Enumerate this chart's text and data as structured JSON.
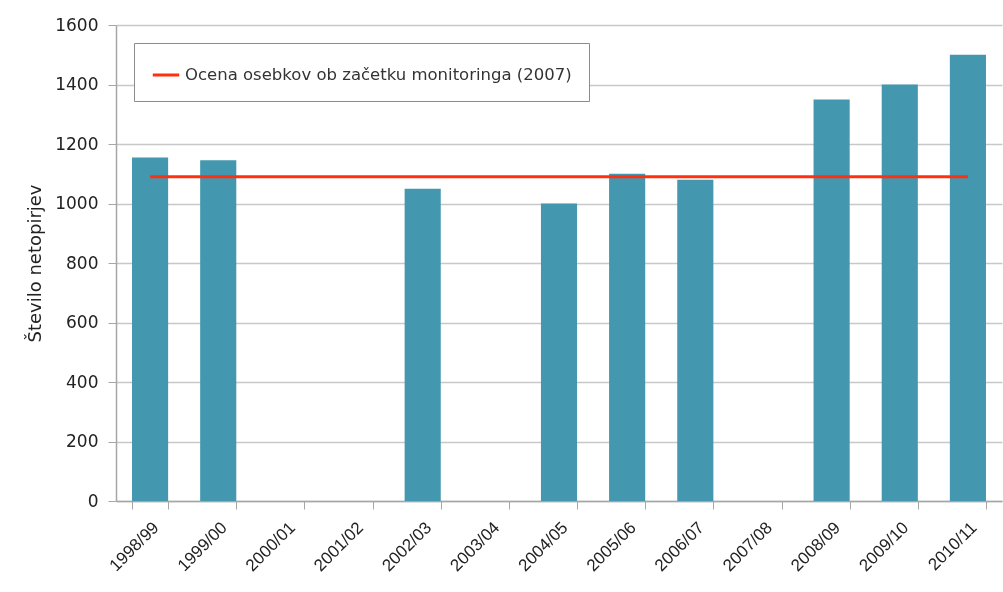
{
  "chart_data": {
    "type": "bar",
    "ylabel": "Število netopirjev",
    "categories": [
      "1998/99",
      "1999/00",
      "2000/01",
      "2001/02",
      "2002/03",
      "2003/04",
      "2004/05",
      "2005/06",
      "2006/07",
      "2007/08",
      "2008/09",
      "2009/10",
      "2010/11"
    ],
    "series": [
      {
        "color": "#4397ae",
        "values": [
          1155,
          1145,
          null,
          null,
          1050,
          null,
          1000,
          1100,
          1080,
          null,
          1350,
          1400,
          1500
        ]
      },
      {
        "type": "line",
        "name": "Ocena osebkov ob začetku monitoringa (2007)",
        "color": "#fe3010",
        "values": [
          1090,
          1090,
          1090,
          1090,
          1090,
          1090,
          1090,
          1090,
          1090,
          1090,
          1090,
          1090,
          1090
        ]
      }
    ],
    "ylim": [
      0,
      1600
    ],
    "yticks": [
      0,
      200,
      400,
      600,
      800,
      1000,
      1200,
      1400,
      1600
    ],
    "grid": "y",
    "legend": "top left"
  }
}
